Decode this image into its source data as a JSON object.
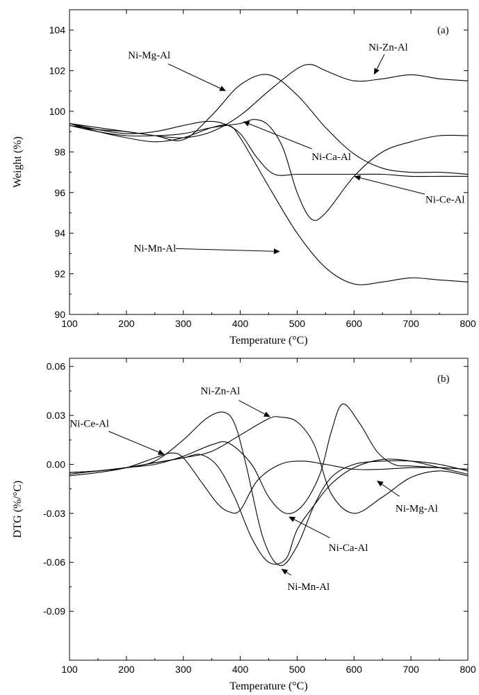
{
  "chart_data": [
    {
      "panel": "(a)",
      "type": "line",
      "xlabel": "Temperature (°C)",
      "ylabel": "Weight (%)",
      "xlim": [
        100,
        800
      ],
      "ylim": [
        90,
        105
      ],
      "xticks": [
        100,
        200,
        300,
        400,
        500,
        600,
        700,
        800
      ],
      "yticks": [
        90,
        92,
        94,
        96,
        98,
        100,
        102,
        104
      ],
      "grid": false,
      "series": [
        {
          "name": "Ni-Mg-Al",
          "x": [
            100,
            150,
            200,
            250,
            300,
            350,
            400,
            450,
            500,
            550,
            600,
            650,
            700,
            750,
            800
          ],
          "y": [
            99.4,
            99.2,
            99.0,
            98.8,
            98.6,
            99.8,
            101.3,
            101.8,
            100.8,
            99.2,
            97.9,
            97.2,
            97.0,
            97.0,
            96.9
          ]
        },
        {
          "name": "Ni-Zn-Al",
          "x": [
            100,
            150,
            200,
            250,
            300,
            350,
            400,
            450,
            500,
            525,
            550,
            600,
            650,
            700,
            750,
            800
          ],
          "y": [
            99.3,
            99.1,
            99.0,
            98.8,
            98.7,
            99.0,
            99.8,
            101.0,
            102.1,
            102.3,
            102.0,
            101.5,
            101.6,
            101.8,
            101.6,
            101.5
          ]
        },
        {
          "name": "Ni-Ca-Al",
          "x": [
            100,
            150,
            200,
            250,
            300,
            350,
            400,
            425,
            450,
            475,
            500,
            525,
            550,
            600,
            650,
            700,
            750,
            800
          ],
          "y": [
            99.3,
            99.0,
            98.8,
            98.8,
            98.9,
            99.2,
            99.4,
            99.6,
            99.3,
            98.2,
            96.0,
            94.7,
            95.0,
            96.8,
            98.0,
            98.5,
            98.8,
            98.8
          ]
        },
        {
          "name": "Ni-Ce-Al",
          "x": [
            100,
            150,
            200,
            250,
            300,
            340,
            370,
            400,
            430,
            460,
            500,
            550,
            600,
            650,
            700,
            750,
            800
          ],
          "y": [
            99.4,
            99.1,
            98.9,
            99.0,
            99.3,
            99.5,
            99.4,
            98.9,
            97.7,
            96.9,
            96.9,
            96.9,
            96.9,
            96.9,
            96.8,
            96.8,
            96.8
          ]
        },
        {
          "name": "Ni-Mn-Al",
          "x": [
            100,
            150,
            200,
            250,
            300,
            350,
            380,
            400,
            450,
            500,
            550,
            600,
            650,
            700,
            750,
            800
          ],
          "y": [
            99.4,
            99.0,
            98.7,
            98.5,
            98.7,
            99.2,
            99.3,
            98.7,
            96.3,
            94.0,
            92.3,
            91.5,
            91.6,
            91.8,
            91.7,
            91.6
          ]
        }
      ],
      "annotations": [
        {
          "text": "Ni-Mg-Al",
          "x": 240,
          "y": 102.6,
          "arrow_to": [
            375,
            101.0
          ]
        },
        {
          "text": "Ni-Zn-Al",
          "x": 660,
          "y": 103.0,
          "arrow_to": [
            635,
            101.8
          ]
        },
        {
          "text": "Ni-Ca-Al",
          "x": 560,
          "y": 97.6,
          "arrow_to": [
            405,
            99.5
          ]
        },
        {
          "text": "Ni-Ce-Al",
          "x": 760,
          "y": 95.5,
          "arrow_to": [
            600,
            96.8
          ]
        },
        {
          "text": "Ni-Mn-Al",
          "x": 250,
          "y": 93.1,
          "arrow_to": [
            470,
            93.1
          ]
        }
      ]
    },
    {
      "panel": "(b)",
      "type": "line",
      "xlabel": "Temperature (°C)",
      "ylabel": "DTG (%/°C)",
      "xlim": [
        100,
        800
      ],
      "ylim": [
        -0.12,
        0.065
      ],
      "xticks": [
        100,
        200,
        300,
        400,
        500,
        600,
        700,
        800
      ],
      "yticks": [
        -0.09,
        -0.06,
        -0.03,
        0.0,
        0.03,
        0.06
      ],
      "ytick_labels": [
        "-0.09",
        "-0.06",
        "-0.03",
        "0.00",
        "0.03",
        "0.06"
      ],
      "grid": false,
      "series": [
        {
          "name": "Ni-Mg-Al",
          "x": [
            100,
            150,
            200,
            250,
            300,
            350,
            380,
            420,
            450,
            480,
            510,
            540,
            560,
            580,
            610,
            640,
            670,
            700,
            750,
            800
          ],
          "y": [
            -0.005,
            -0.004,
            -0.002,
            0.0,
            0.005,
            0.012,
            0.013,
            0.0,
            -0.02,
            -0.03,
            -0.025,
            -0.006,
            0.02,
            0.037,
            0.025,
            0.008,
            0.0,
            -0.001,
            -0.002,
            -0.003
          ]
        },
        {
          "name": "Ni-Zn-Al",
          "x": [
            100,
            150,
            200,
            250,
            300,
            350,
            400,
            450,
            470,
            500,
            530,
            560,
            600,
            650,
            700,
            750,
            800
          ],
          "y": [
            -0.006,
            -0.004,
            -0.002,
            0.001,
            0.004,
            0.008,
            0.018,
            0.028,
            0.029,
            0.026,
            0.012,
            -0.018,
            -0.03,
            -0.02,
            -0.008,
            -0.004,
            -0.007
          ]
        },
        {
          "name": "Ni-Ca-Al",
          "x": [
            100,
            150,
            200,
            250,
            300,
            330,
            360,
            390,
            420,
            450,
            480,
            500,
            530,
            560,
            600,
            650,
            700,
            750,
            800
          ],
          "y": [
            -0.005,
            -0.004,
            -0.002,
            0.001,
            0.004,
            0.006,
            -0.001,
            -0.02,
            -0.045,
            -0.06,
            -0.058,
            -0.04,
            -0.025,
            -0.012,
            -0.002,
            0.003,
            0.002,
            -0.002,
            -0.006
          ]
        },
        {
          "name": "Ni-Ce-Al",
          "x": [
            100,
            150,
            200,
            250,
            280,
            300,
            330,
            360,
            380,
            400,
            430,
            470,
            510,
            550,
            600,
            650,
            700,
            750,
            800
          ],
          "y": [
            -0.007,
            -0.005,
            -0.002,
            0.004,
            0.007,
            0.004,
            -0.01,
            -0.024,
            -0.029,
            -0.028,
            -0.01,
            0.0,
            0.002,
            0.0,
            -0.003,
            -0.003,
            -0.002,
            -0.002,
            -0.003
          ]
        },
        {
          "name": "Ni-Mn-Al",
          "x": [
            100,
            150,
            200,
            250,
            300,
            340,
            370,
            390,
            410,
            440,
            470,
            500,
            530,
            560,
            600,
            650,
            700,
            750,
            800
          ],
          "y": [
            -0.005,
            -0.004,
            -0.002,
            0.002,
            0.015,
            0.028,
            0.032,
            0.025,
            0.0,
            -0.045,
            -0.062,
            -0.05,
            -0.025,
            -0.008,
            0.0,
            0.002,
            0.002,
            0.0,
            -0.004
          ]
        }
      ],
      "annotations": [
        {
          "text": "Ni-Zn-Al",
          "x": 365,
          "y": 0.043,
          "arrow_to": [
            453,
            0.029
          ]
        },
        {
          "text": "Ni-Ce-Al",
          "x": 135,
          "y": 0.023,
          "arrow_to": [
            267,
            0.006
          ]
        },
        {
          "text": "Ni-Mg-Al",
          "x": 710,
          "y": -0.029,
          "arrow_to": [
            640,
            -0.01
          ]
        },
        {
          "text": "Ni-Ca-Al",
          "x": 590,
          "y": -0.053,
          "arrow_to": [
            485,
            -0.032
          ]
        },
        {
          "text": "Ni-Mn-Al",
          "x": 520,
          "y": -0.077,
          "arrow_to": [
            472,
            -0.064
          ]
        }
      ]
    }
  ]
}
